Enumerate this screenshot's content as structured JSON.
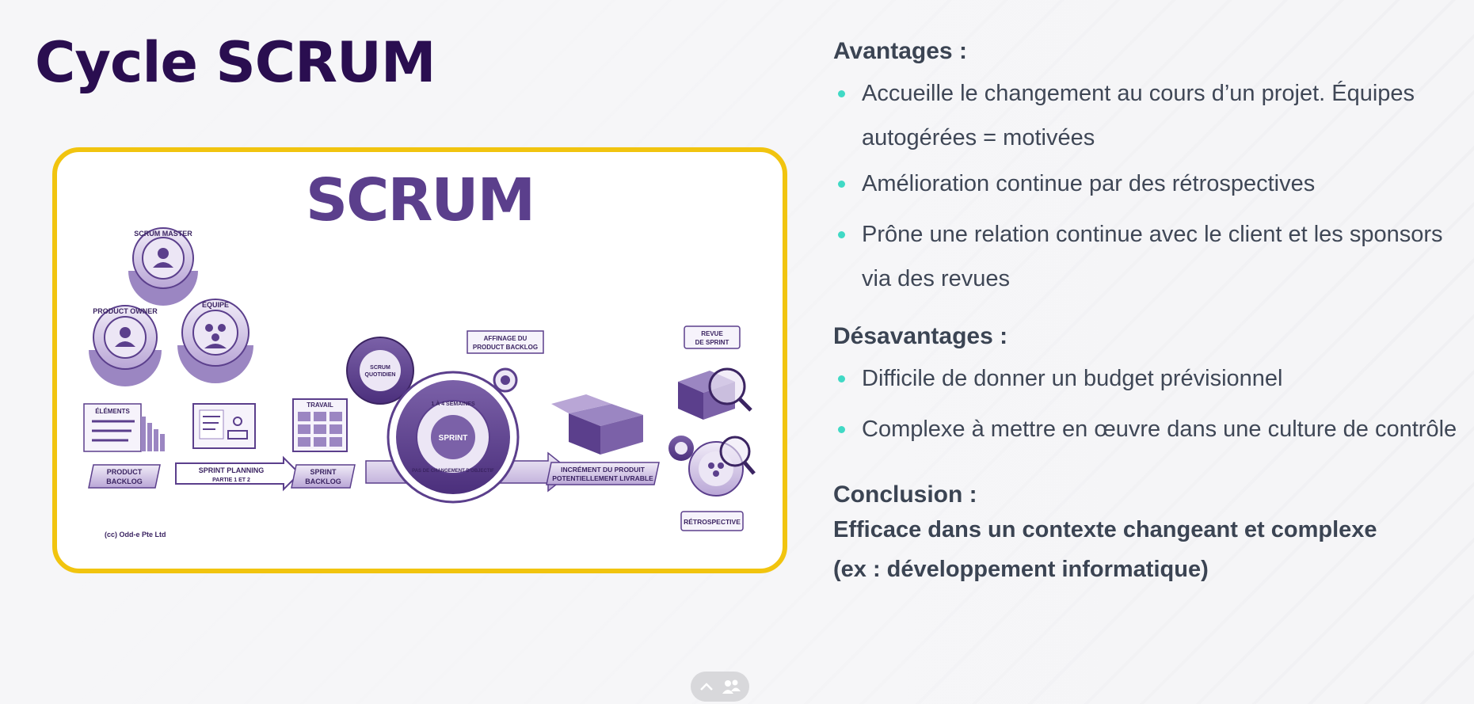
{
  "slide": {
    "title": "Cycle SCRUM"
  },
  "diagram": {
    "heading": "SCRUM",
    "roles": {
      "scrum_master": "SCRUM MASTER",
      "product_owner": "PRODUCT OWNER",
      "team": "ÉQUIPE"
    },
    "artifacts": {
      "elements_label": "ÉLÉMENTS",
      "product_backlog": [
        "PRODUCT",
        "BACKLOG"
      ],
      "sprint_planning": [
        "SPRINT PLANNING",
        "PARTIE 1 ET 2"
      ],
      "travail_label": "TRAVAIL",
      "sprint_backlog": [
        "SPRINT",
        "BACKLOG"
      ],
      "scrum_quotidien": [
        "SCRUM",
        "QUOTIDIEN"
      ],
      "sprint_center": "SPRINT",
      "ring_top": "1 À 4 SEMAINES",
      "ring_bottom": "PAS DE CHANGEMENT D'OBJECTIF",
      "affinage": [
        "AFFINAGE DU",
        "PRODUCT BACKLOG"
      ],
      "increment": [
        "INCRÉMENT DU PRODUIT",
        "POTENTIELLEMENT LIVRABLE"
      ],
      "revue": [
        "REVUE",
        "DE SPRINT"
      ],
      "retrospective": "RÉTROSPECTIVE"
    },
    "credit": "(cc) Odd-e Pte Ltd"
  },
  "content": {
    "avantages_title": "Avantages :",
    "avantages": [
      "Accueille le changement au cours d’un projet.  Équipes",
      "autogérées = motivées",
      "Amélioration continue par des rétrospectives",
      "Prône une relation continue avec le client et les  sponsors",
      "via des revues"
    ],
    "desavantages_title": "Désavantages :",
    "desavantages": [
      "Difficile de donner un budget prévisionnel",
      "Complexe à mettre en œuvre dans une culture de contrôle"
    ],
    "conclusion_title": "Conclusion :",
    "conclusion_lines": [
      "Efficace dans un contexte changeant et complexe",
      "(ex : développement informatique)"
    ]
  },
  "colors": {
    "title": "#2a0e50",
    "accent_border": "#f1c40f",
    "bullet": "#40d9c5",
    "diagram_purple": "#5b3f8c",
    "text": "#3f4756"
  },
  "icons": {
    "presenter_controls": [
      "chevron-up-icon",
      "people-icon"
    ]
  }
}
